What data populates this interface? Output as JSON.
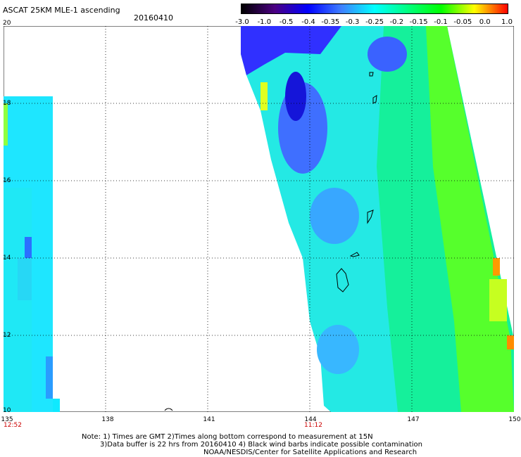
{
  "title": "ASCAT 25KM MLE-1 ascending",
  "date": "20160410",
  "colorbar": {
    "labels": [
      "-3.0",
      "-1.0",
      "-0.5",
      "-0.4",
      "-0.35",
      "-0.3",
      "-0.25",
      "-0.2",
      "-0.15",
      "-0.1",
      "-0.05",
      "0.0",
      "1.0"
    ],
    "colors": [
      "#000000",
      "#4b0082",
      "#0000ff",
      "#3f7fff",
      "#00ffff",
      "#00ff80",
      "#00ff00",
      "#ffff00",
      "#ff0000"
    ]
  },
  "axes": {
    "y_ticks": [
      "20",
      "18",
      "16",
      "14",
      "12",
      "10"
    ],
    "x_ticks": [
      "135",
      "138",
      "141",
      "144",
      "147",
      "150"
    ],
    "times": [
      "12:52",
      "11:12"
    ]
  },
  "notes": {
    "line1": "Note: 1) Times are GMT 2)Times along bottom correspond to measurement at 15N",
    "line2": "3)Data buffer is 22 hrs from 20160410 4) Black wind barbs indicate possible contamination",
    "line3": "NOAA/NESDIS/Center for Satellite Applications and Research"
  },
  "map": {
    "lon_range": [
      135,
      150
    ],
    "lat_range": [
      10,
      20
    ],
    "swaths": [
      {
        "name": "west-swath",
        "lon_start": 135,
        "lon_end": 136.6
      },
      {
        "name": "east-swath",
        "lon_start": 142,
        "lon_end": 150
      }
    ]
  }
}
